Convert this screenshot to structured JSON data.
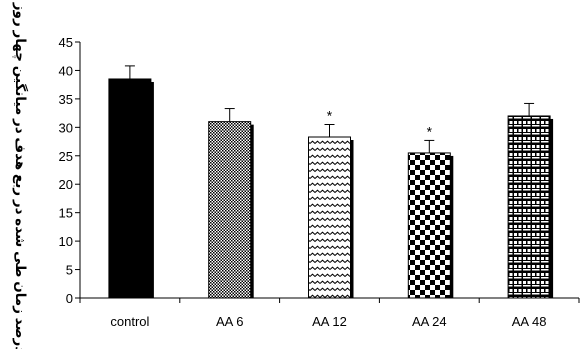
{
  "chart_data": {
    "type": "bar",
    "ylabel": "درصد زمان طی شده در ربع هدف در میانگین چهار روز",
    "ylim": [
      0,
      45
    ],
    "yticks": [
      0,
      5,
      10,
      15,
      20,
      25,
      30,
      35,
      40,
      45
    ],
    "grid": false,
    "legend": "none",
    "categories": [
      "control",
      "AA 6",
      "AA 12",
      "AA 24",
      "AA 48"
    ],
    "values": [
      38.5,
      31.0,
      28.3,
      25.5,
      32.0
    ],
    "error": [
      2.3,
      2.3,
      2.2,
      2.2,
      2.2
    ],
    "annotations": [
      "",
      "",
      "*",
      "*",
      ""
    ],
    "patterns": [
      "solid-black",
      "fine-dots",
      "zigzag",
      "checkerboard",
      "grid"
    ]
  }
}
